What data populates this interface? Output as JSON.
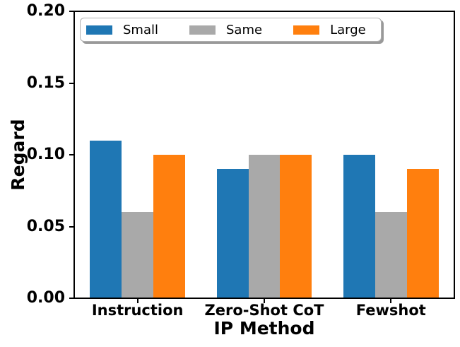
{
  "chart_data": {
    "type": "bar",
    "title": "",
    "xlabel": "IP Method",
    "ylabel": "Regard",
    "categories": [
      "Instruction",
      "Zero-Shot CoT",
      "Fewshot"
    ],
    "series": [
      {
        "name": "Small",
        "color": "#1f77b4",
        "values": [
          0.11,
          0.09,
          0.1
        ]
      },
      {
        "name": "Same",
        "color": "#a9a9a9",
        "values": [
          0.06,
          0.1,
          0.06
        ]
      },
      {
        "name": "Large",
        "color": "#ff7f0e",
        "values": [
          0.1,
          0.1,
          0.09
        ]
      }
    ],
    "ylim": [
      0,
      0.2
    ],
    "yticks": [
      "0.00",
      "0.05",
      "0.10",
      "0.15",
      "0.20"
    ],
    "grid": false,
    "legend_position": "upper center inside",
    "bar_group_width_fraction": 0.75,
    "background_color": "#ffffff",
    "axis_color": "#000000"
  }
}
